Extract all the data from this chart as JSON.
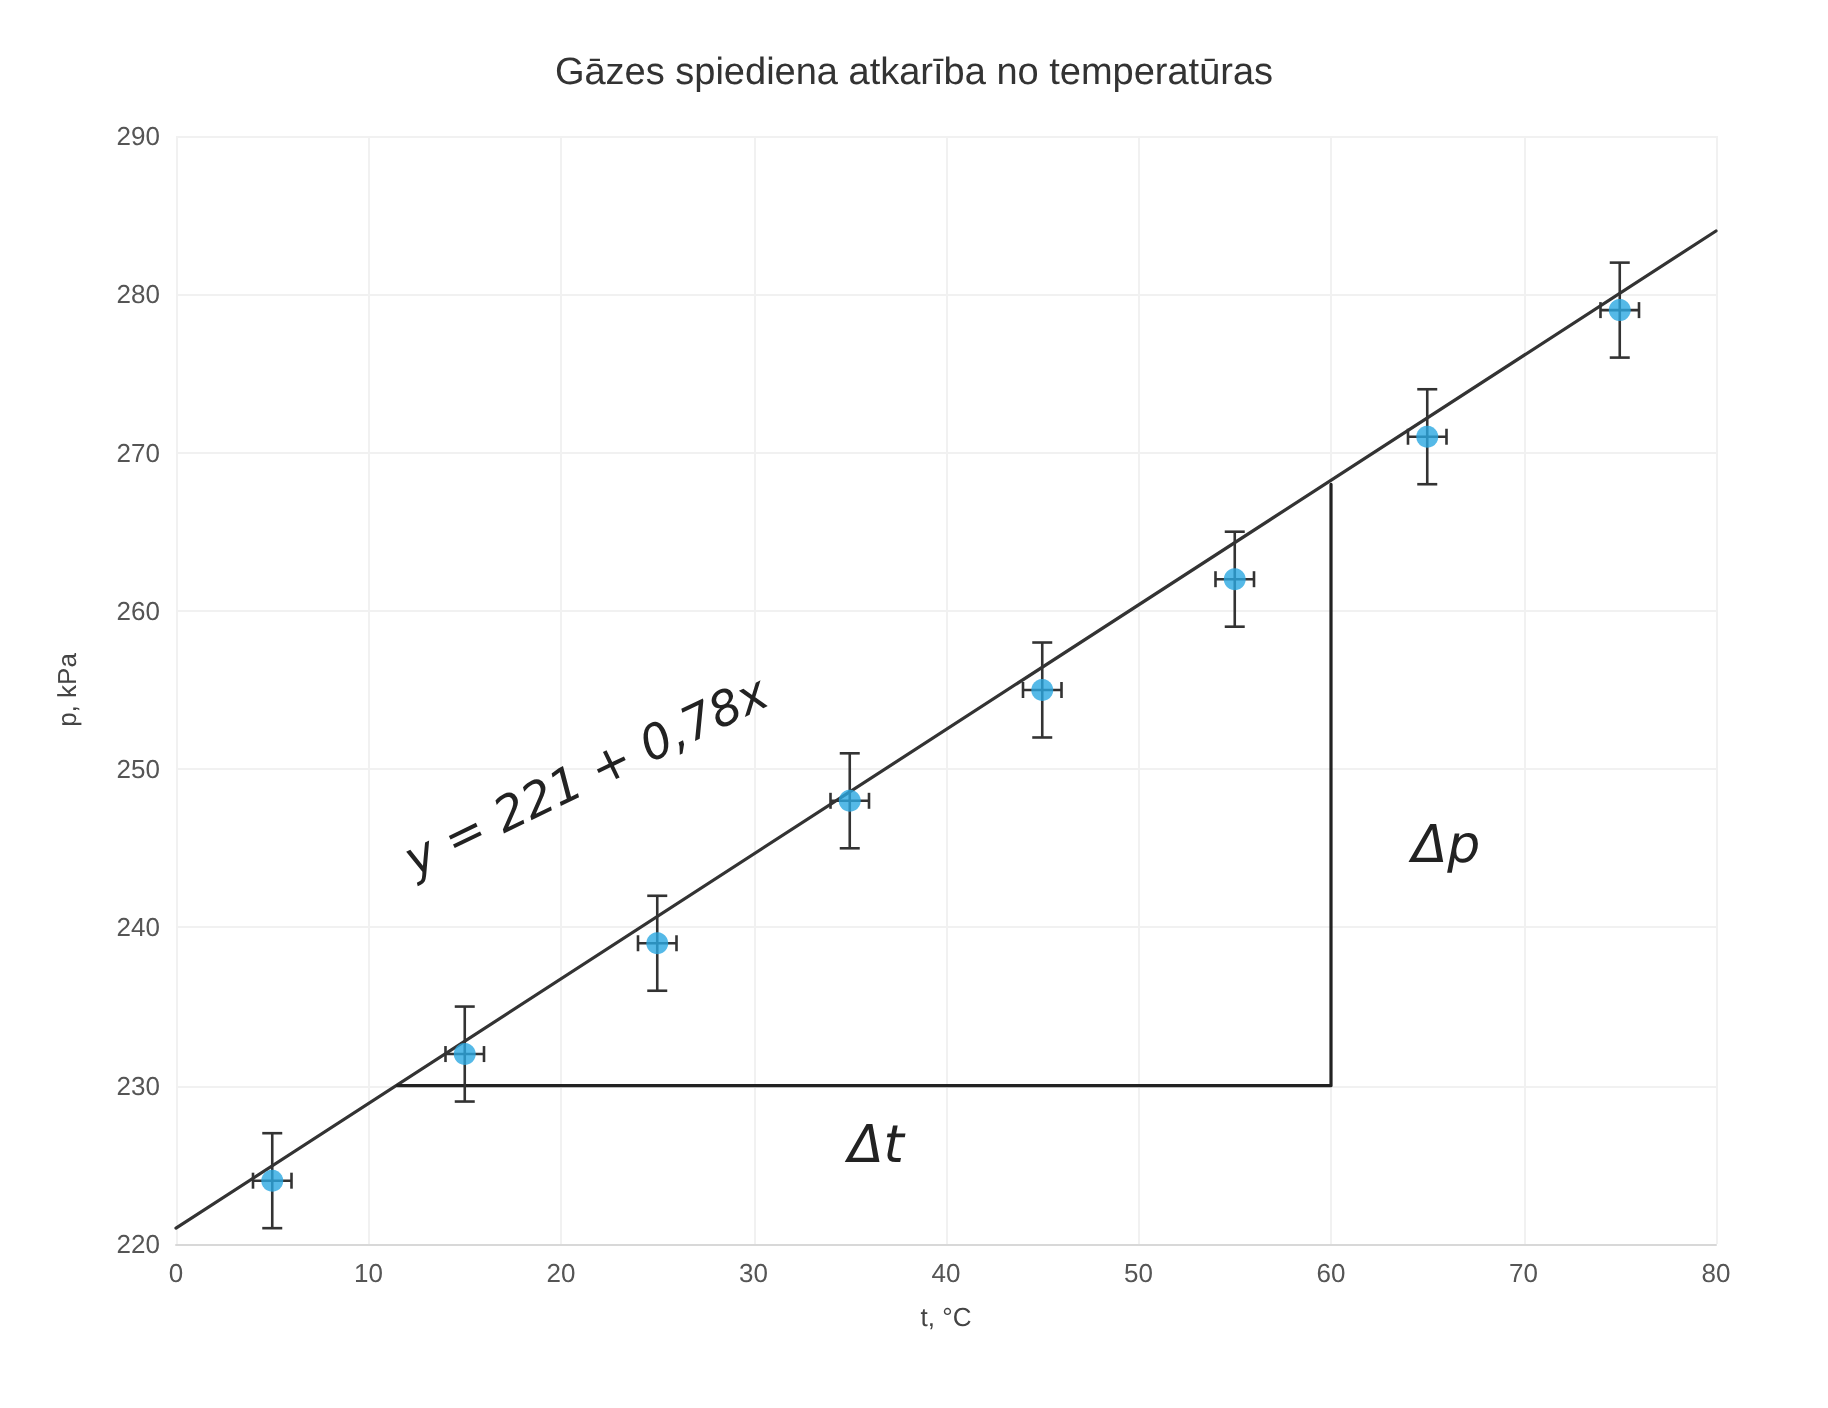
{
  "chart_data": {
    "type": "scatter",
    "title": "Gāzes spiediena atkarība no temperatūras",
    "xlabel": "t, °C",
    "ylabel": "p, kPa",
    "xlim": [
      0,
      80
    ],
    "ylim": [
      220,
      290
    ],
    "xticks": [
      0,
      10,
      20,
      30,
      40,
      50,
      60,
      70,
      80
    ],
    "yticks": [
      220,
      230,
      240,
      250,
      260,
      270,
      280,
      290
    ],
    "grid": true,
    "series": [
      {
        "color": "#2aa7e1",
        "marker": "circle",
        "x": [
          5,
          15,
          25,
          35,
          45,
          55,
          65,
          75
        ],
        "values": [
          224,
          232,
          239,
          248,
          255,
          262,
          271,
          279
        ],
        "errors": [
          3,
          3,
          3,
          3,
          3,
          3,
          3,
          3
        ],
        "xerrors": [
          1,
          1,
          1,
          1,
          1,
          1,
          1,
          1
        ]
      },
      {
        "type": "line",
        "color": "#333333",
        "x": [
          0,
          80
        ],
        "values": [
          221,
          284
        ],
        "marker": "none"
      },
      {
        "type": "line",
        "color": "#222222",
        "x": [
          11.5,
          60,
          60
        ],
        "values": [
          230,
          230,
          268
        ],
        "marker": "none"
      }
    ],
    "annotations": [
      "y = 221 + 0,78x",
      "Δt",
      "Δp"
    ]
  }
}
